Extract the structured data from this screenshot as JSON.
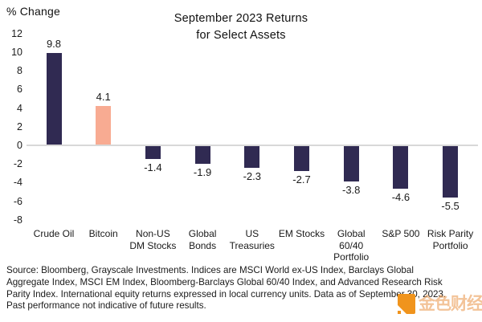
{
  "chart_data": {
    "type": "bar",
    "title": "September 2023 Returns\nfor Select Assets",
    "y_axis_label": "% Change",
    "categories": [
      "Crude Oil",
      "Bitcoin",
      "Non-US\nDM Stocks",
      "Global\nBonds",
      "US\nTreasuries",
      "EM Stocks",
      "Global\n60/40\nPortfolio",
      "S&P 500",
      "Risk Parity\nPortfolio"
    ],
    "values": [
      9.8,
      4.1,
      -1.4,
      -1.9,
      -2.3,
      -2.7,
      -3.8,
      -4.6,
      -5.5
    ],
    "value_labels": [
      "9.8",
      "4.1",
      "-1.4",
      "-1.9",
      "-2.3",
      "-2.7",
      "-3.8",
      "-4.6",
      "-5.5"
    ],
    "yticks": [
      12,
      10,
      8,
      6,
      4,
      2,
      0,
      -2,
      -4,
      -6,
      -8
    ],
    "ylim": [
      -8,
      12
    ],
    "xlabel": "",
    "ylabel": "% Change",
    "grid": "zero-baseline only",
    "legend": "none",
    "bar_color_default": "#302a52",
    "bar_color_highlight": "#f8ab92",
    "highlight_index": 1,
    "highlight_category": "Bitcoin",
    "baseline_color": "#d8d8d8"
  },
  "footer": {
    "source_text": "Source: Bloomberg, Grayscale Investments. Indices are MSCI World ex-US Index, Barclays Global\nAggregate Index, MSCI EM Index, Bloomberg-Barclays Global 60/40 Index, and Advanced Research Risk\nParity Index. International equity returns expressed in local currency units. Data as of September 30, 2023.\nPast performance not indicative of future results."
  },
  "watermark": {
    "text": "金色财经",
    "logo_color": "#f0941d"
  }
}
